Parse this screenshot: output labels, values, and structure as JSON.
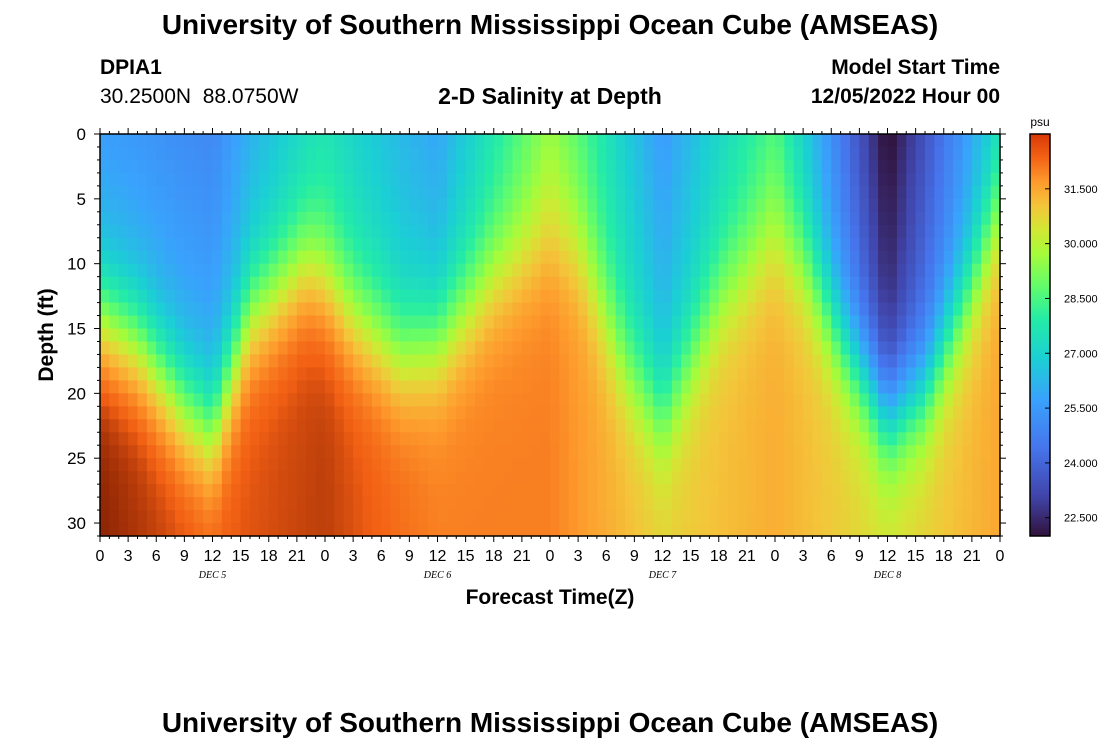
{
  "header": {
    "title": "University of Southern Mississippi Ocean Cube (AMSEAS)",
    "station_id": "DPIA1",
    "coordinates": "30.2500N  88.0750W",
    "subtitle": "2-D Salinity at Depth",
    "model_start_label": "Model Start Time",
    "model_start_value": "12/05/2022 Hour 00"
  },
  "footer": {
    "title_repeat": "University of Southern Mississippi Ocean Cube (AMSEAS)"
  },
  "chart_data": {
    "type": "heatmap",
    "title": "2-D Salinity at Depth",
    "xlabel": "Forecast Time(Z)",
    "ylabel": "Depth (ft)",
    "x_range_hours": [
      0,
      96
    ],
    "y_range_ft": [
      0,
      31
    ],
    "y_ticks": [
      "0",
      "5",
      "10",
      "15",
      "20",
      "25",
      "30"
    ],
    "x_tick_labels": [
      "0",
      "3",
      "6",
      "9",
      "12",
      "15",
      "18",
      "21",
      "0",
      "3",
      "6",
      "9",
      "12",
      "15",
      "18",
      "21",
      "0",
      "3",
      "6",
      "9",
      "12",
      "15",
      "18",
      "21",
      "0",
      "3",
      "6",
      "9",
      "12",
      "15",
      "18",
      "21",
      "0"
    ],
    "day_labels": [
      "DEC 5",
      "DEC 6",
      "DEC 7",
      "DEC 8"
    ],
    "colorbar": {
      "unit": "psu",
      "range": [
        22.0,
        33.0
      ],
      "ticks": [
        "31.500",
        "30.000",
        "28.500",
        "27.000",
        "25.500",
        "24.000",
        "22.500"
      ]
    },
    "surface_salinity_hours": [
      0,
      12,
      24,
      36,
      48,
      60,
      72,
      84,
      96
    ],
    "surface_salinity_values": [
      26.2,
      26.0,
      28.0,
      26.5,
      29.8,
      26.5,
      28.8,
      22.8,
      27.5
    ],
    "halocline_depth_hours": [
      0,
      4,
      9,
      12,
      16,
      22,
      24,
      27,
      32,
      36,
      42,
      48,
      51,
      56,
      60,
      66,
      72,
      75,
      79,
      84,
      88,
      93,
      96
    ],
    "halocline_depth_ft": [
      14,
      16,
      21,
      23,
      14,
      10,
      11,
      14,
      17,
      16,
      11,
      8,
      9,
      18,
      22,
      13,
      8,
      10,
      16,
      22,
      20,
      12,
      6
    ],
    "deep_salinity_ft30_hours": [
      0,
      12,
      24,
      36,
      48,
      60,
      72,
      84,
      96
    ],
    "deep_salinity_ft30_values": [
      33.0,
      32.4,
      32.7,
      32.0,
      32.0,
      30.8,
      31.4,
      30.5,
      31.5
    ]
  }
}
